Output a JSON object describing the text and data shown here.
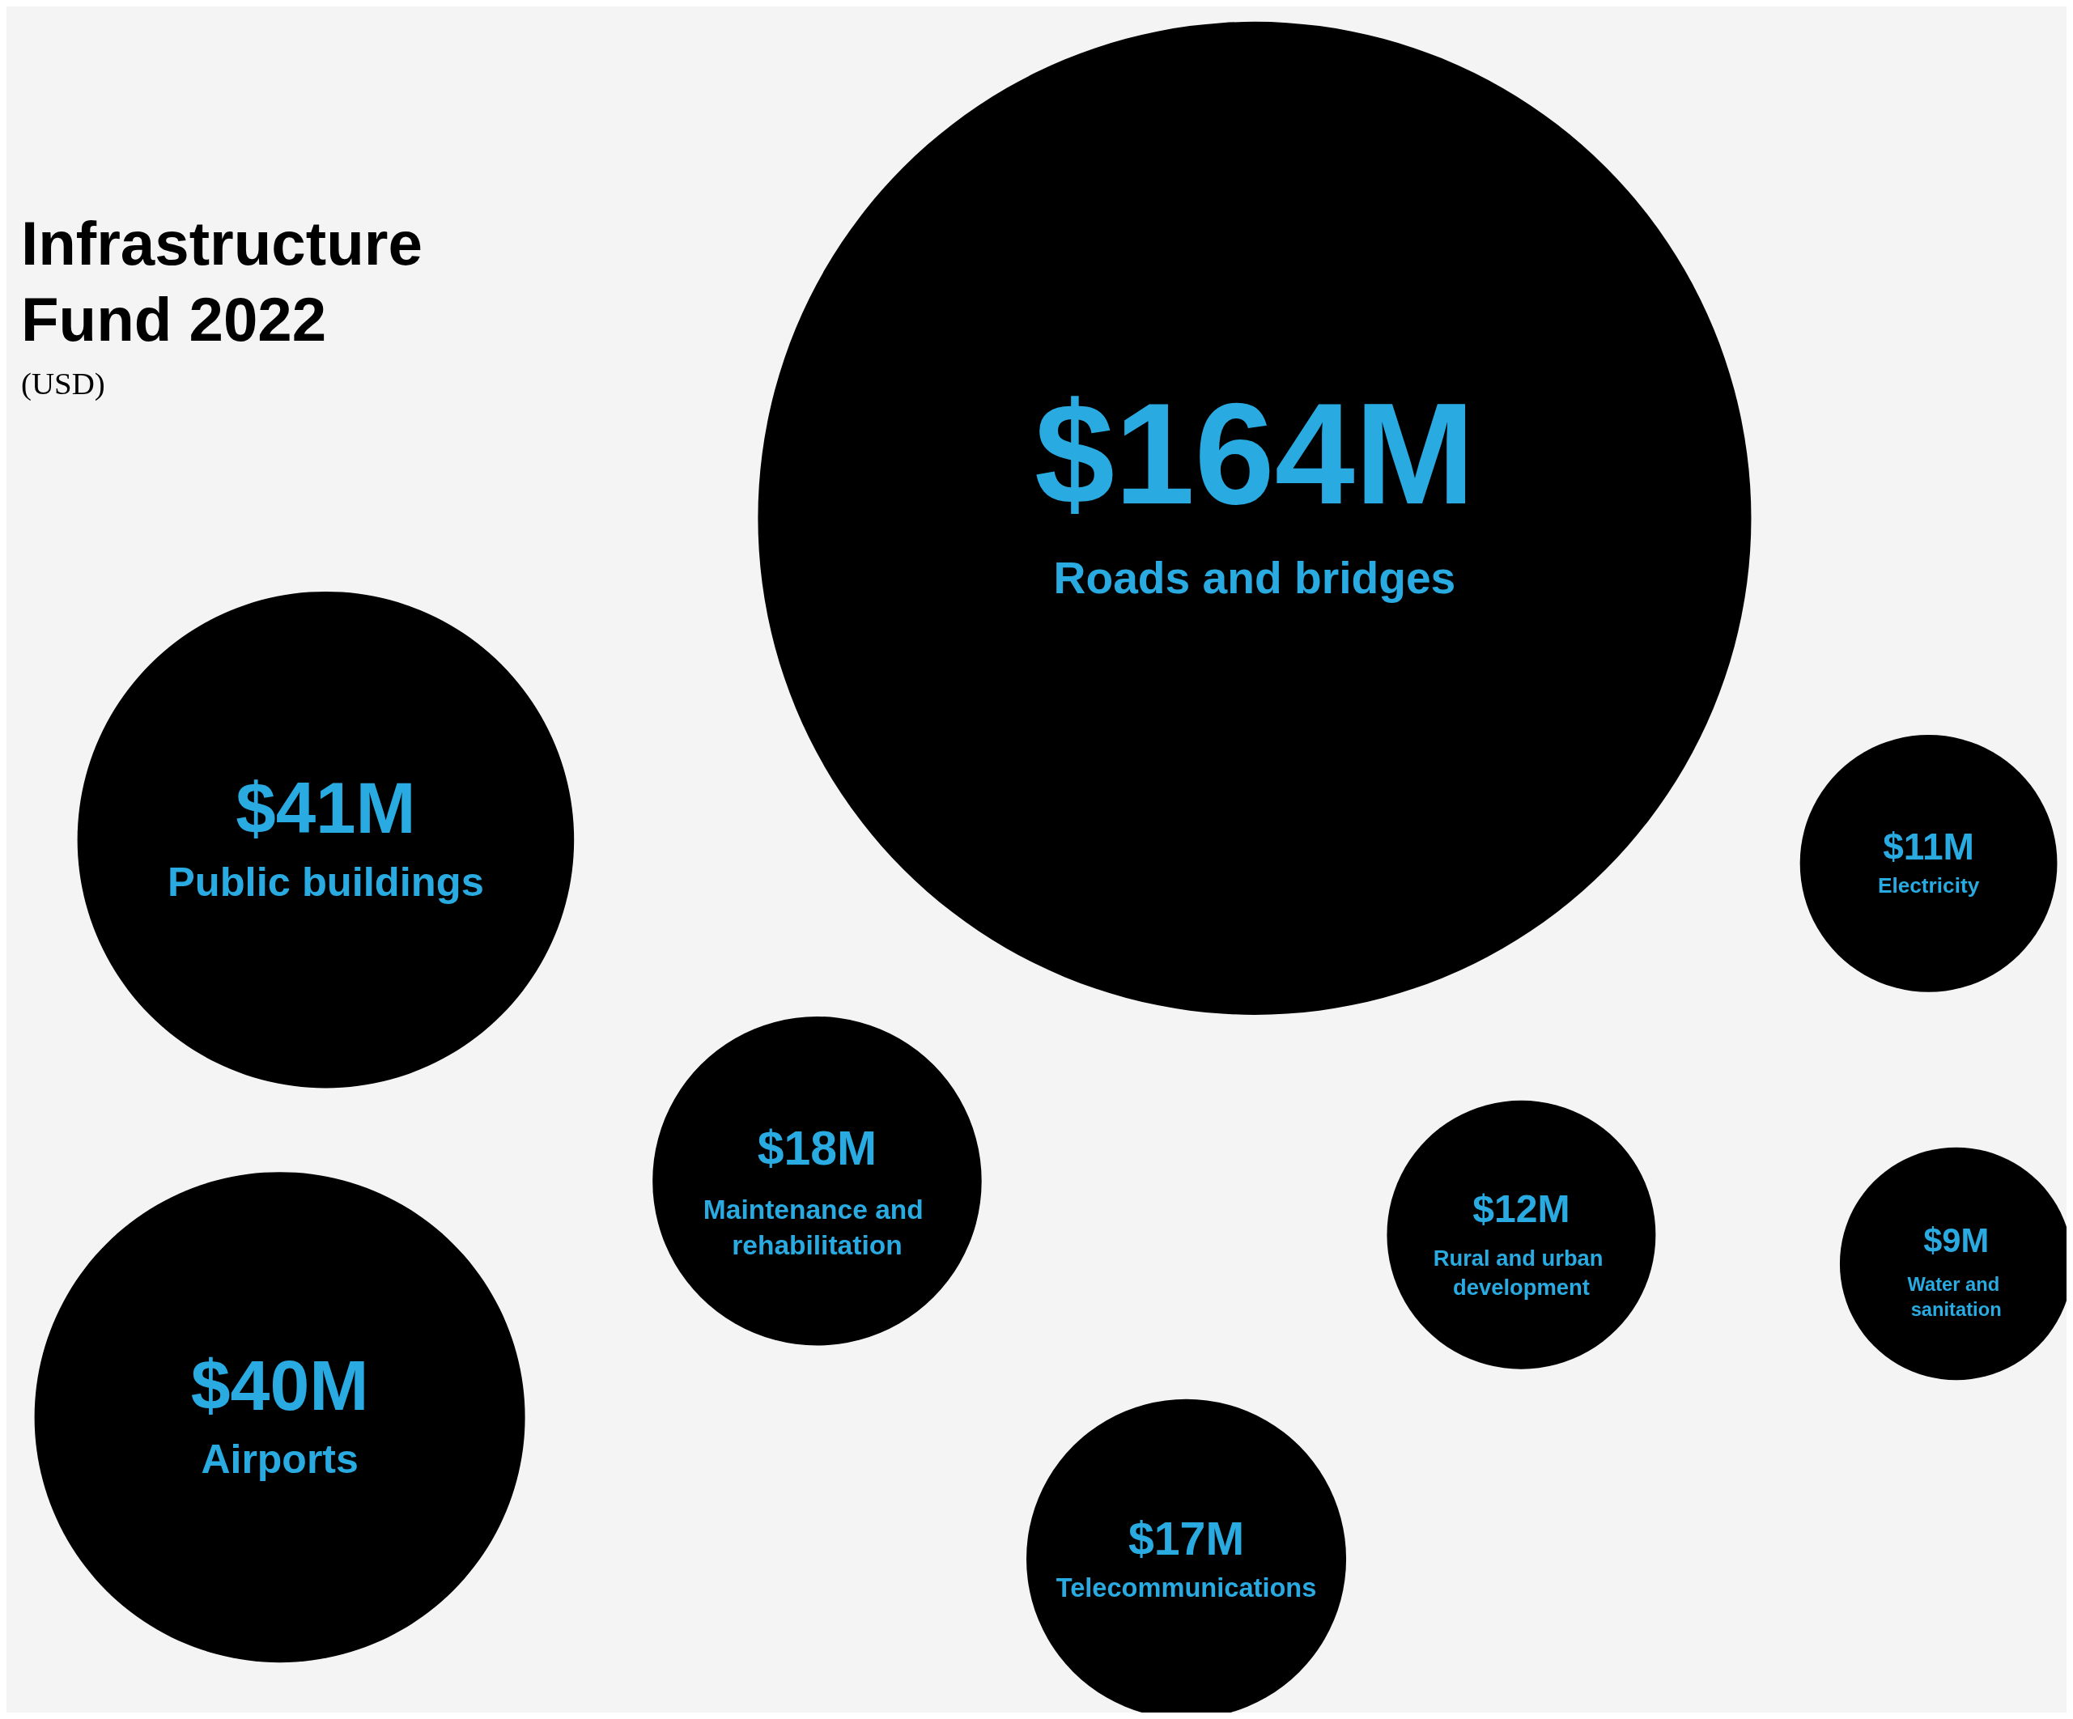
{
  "chart_data": {
    "type": "other",
    "title": "Infrastructure Fund 2022",
    "subtitle": "(USD)",
    "categories": [
      "Roads and bridges",
      "Public buildings",
      "Airports",
      "Maintenance and rehabilitation",
      "Telecommunications",
      "Rural and urban development",
      "Electricity",
      "Water and sanitation"
    ],
    "values": [
      164,
      41,
      40,
      18,
      17,
      12,
      11,
      9
    ],
    "value_labels": [
      "$164M",
      "$41M",
      "$40M",
      "$18M",
      "$17M",
      "$12M",
      "$11M",
      "$9M"
    ],
    "color": "#000000"
  }
}
